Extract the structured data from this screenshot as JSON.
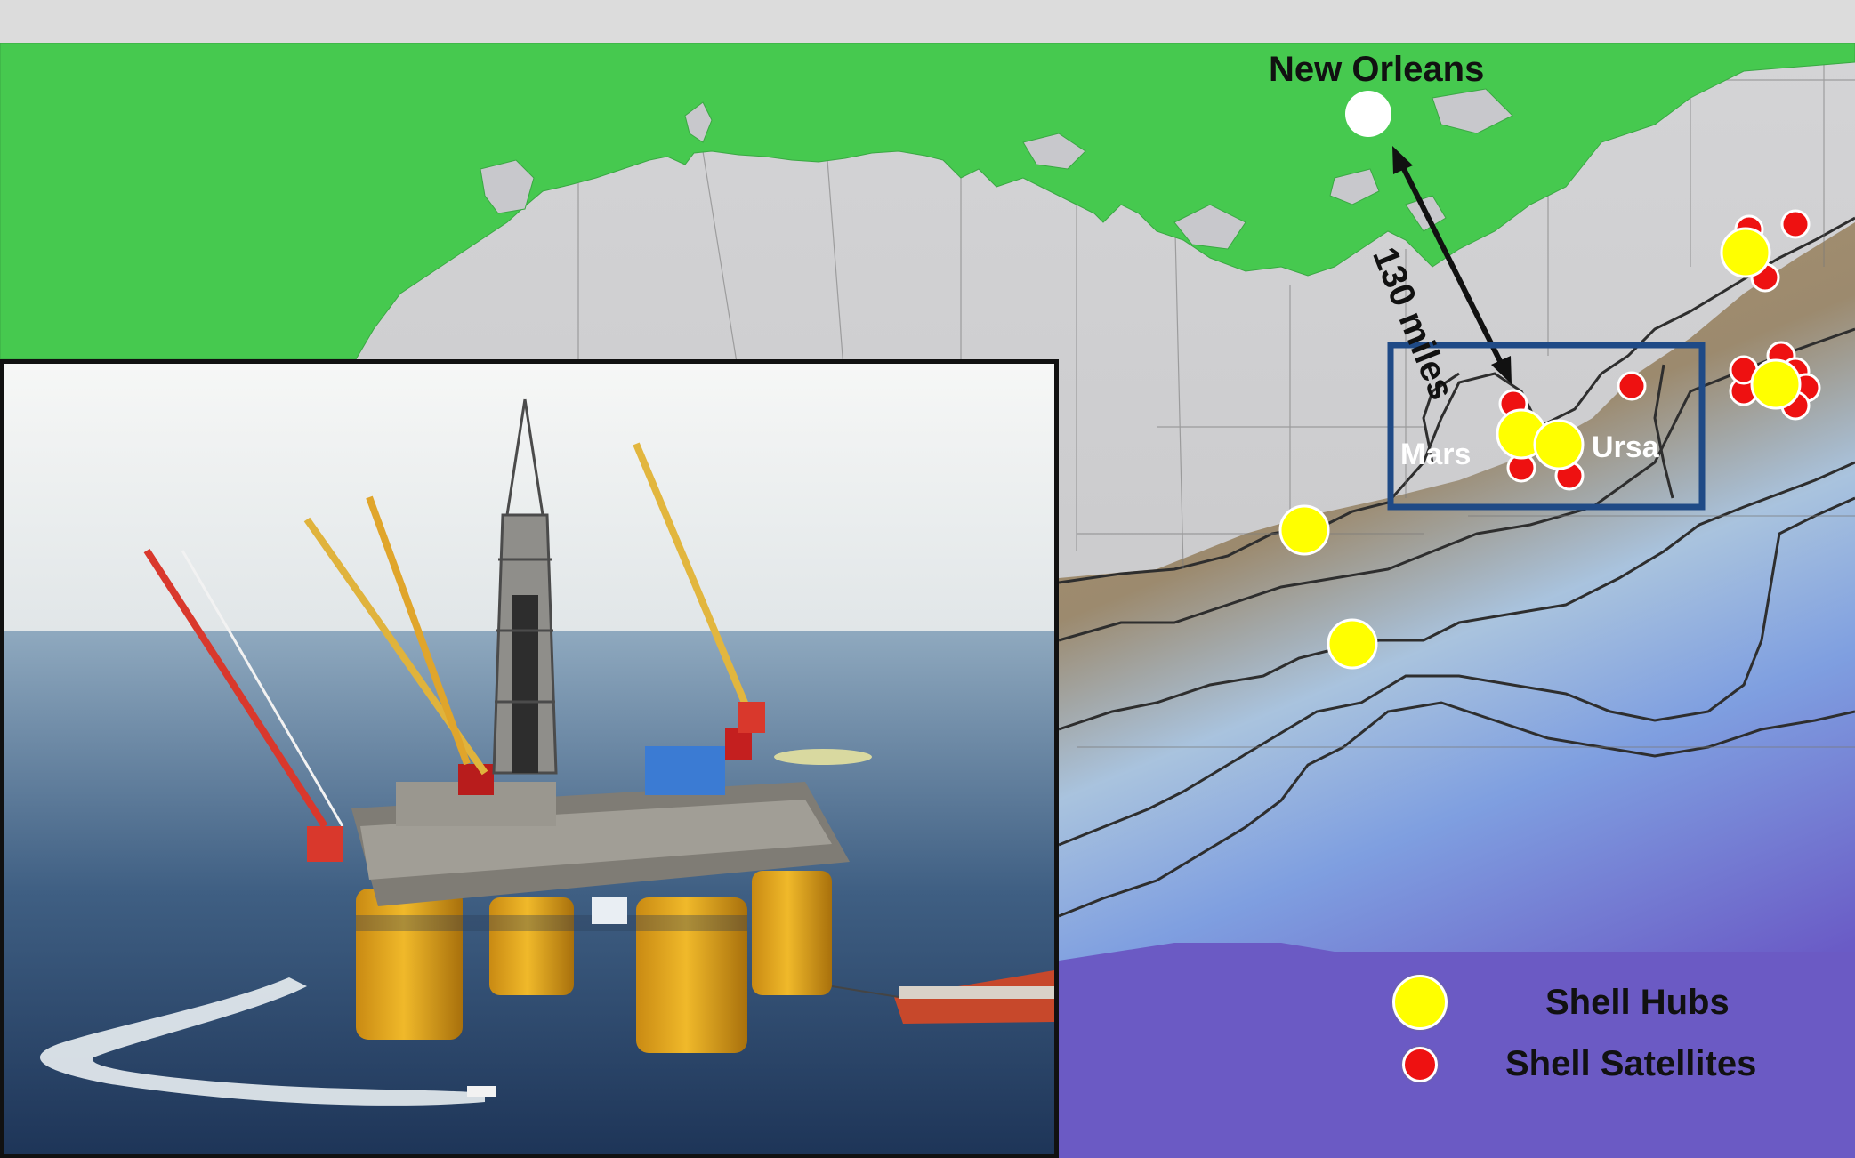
{
  "map": {
    "city": {
      "label": "New Orleans"
    },
    "distance": {
      "label": "130 miles"
    },
    "fields": [
      {
        "label": "Mars"
      },
      {
        "label": "Ursa"
      }
    ],
    "colors": {
      "land": "#46c94f",
      "shelf": "#c8c8cc",
      "slope_high": "#a48a66",
      "slope_low": "#8ab2e2",
      "deep_water": "#6a5bc6",
      "hub": "#ffff00",
      "satellite": "#ee1111",
      "highlight_box": "#1f4a86"
    }
  },
  "legend": {
    "hubs_label": "Shell Hubs",
    "satellites_label": "Shell Satellites"
  },
  "photo": {
    "subject": "offshore-tension-leg-platform"
  }
}
